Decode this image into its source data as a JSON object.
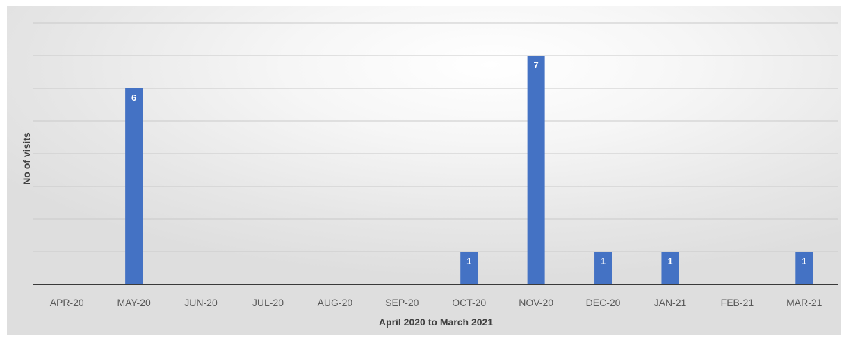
{
  "chart_data": {
    "type": "bar",
    "title": "",
    "xlabel": "April 2020 to March 2021",
    "ylabel": "No of visits",
    "categories": [
      "APR-20",
      "MAY-20",
      "JUN-20",
      "JUL-20",
      "AUG-20",
      "SEP-20",
      "OCT-20",
      "NOV-20",
      "DEC-20",
      "JAN-21",
      "FEB-21",
      "MAR-21"
    ],
    "values": [
      0,
      6,
      0,
      0,
      0,
      0,
      1,
      7,
      1,
      1,
      0,
      1
    ],
    "ylim": [
      0,
      8
    ],
    "grid": true,
    "legend": "none",
    "bar_color": "#4472c4",
    "show_y_tick_labels": false
  }
}
